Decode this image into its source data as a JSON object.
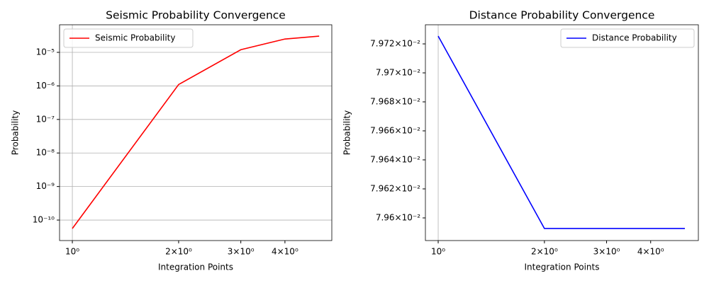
{
  "chart_data": [
    {
      "type": "line",
      "title": "Seismic Probability Convergence",
      "xlabel": "Integration Points",
      "ylabel": "Probability",
      "x": [
        1,
        2,
        3,
        4,
        5
      ],
      "xscale": "log",
      "yscale": "log",
      "xlim": [
        0.92,
        5.43
      ],
      "ylim": [
        2.45e-11,
        6.65e-05
      ],
      "xticks": [
        {
          "value": 1,
          "label": "10⁰"
        },
        {
          "value": 2,
          "label": "2×10⁰"
        },
        {
          "value": 3,
          "label": "3×10⁰"
        },
        {
          "value": 4,
          "label": "4×10⁰"
        }
      ],
      "yticks": [
        {
          "value": 1e-10,
          "label": "10⁻¹⁰"
        },
        {
          "value": 1e-09,
          "label": "10⁻⁹"
        },
        {
          "value": 1e-08,
          "label": "10⁻⁸"
        },
        {
          "value": 1e-07,
          "label": "10⁻⁷"
        },
        {
          "value": 1e-06,
          "label": "10⁻⁶"
        },
        {
          "value": 1e-05,
          "label": "10⁻⁵"
        }
      ],
      "grid": true,
      "legend": "upper left",
      "series": [
        {
          "name": "Seismic Probability",
          "color": "#ff0000",
          "values": [
            5.6e-11,
            1.1e-06,
            1.2e-05,
            2.5e-05,
            3.05e-05
          ]
        }
      ]
    },
    {
      "type": "line",
      "title": "Distance Probability Convergence",
      "xlabel": "Integration Points",
      "ylabel": "Probability",
      "x": [
        1,
        2,
        3,
        4,
        5
      ],
      "xscale": "log",
      "yscale": "log",
      "xlim": [
        0.92,
        5.46
      ],
      "ylim": [
        0.0795844,
        0.0797332
      ],
      "xticks": [
        {
          "value": 1,
          "label": "10⁰"
        },
        {
          "value": 2,
          "label": "2×10⁰"
        },
        {
          "value": 3,
          "label": "3×10⁰"
        },
        {
          "value": 4,
          "label": "4×10⁰"
        }
      ],
      "yticks": [
        {
          "value": 0.0796,
          "label": "7.96×10⁻²"
        },
        {
          "value": 0.07962,
          "label": "7.962×10⁻²"
        },
        {
          "value": 0.07964,
          "label": "7.964×10⁻²"
        },
        {
          "value": 0.07966,
          "label": "7.966×10⁻²"
        },
        {
          "value": 0.07968,
          "label": "7.968×10⁻²"
        },
        {
          "value": 0.0797,
          "label": "7.97×10⁻²"
        },
        {
          "value": 0.07972,
          "label": "7.972×10⁻²"
        }
      ],
      "grid": true,
      "legend": "upper right",
      "series": [
        {
          "name": "Distance Probability",
          "color": "#0000ff",
          "values": [
            0.0797254,
            0.0795927,
            0.0795927,
            0.0795927,
            0.0795927
          ]
        }
      ]
    }
  ]
}
